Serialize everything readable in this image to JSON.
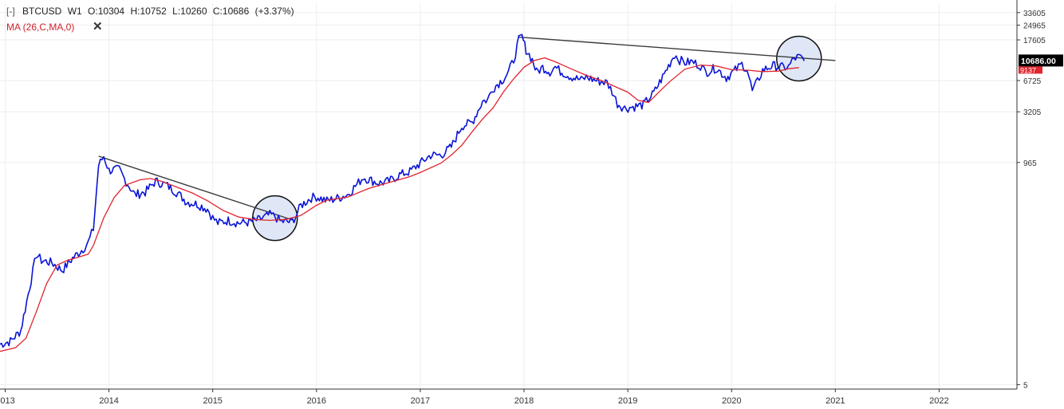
{
  "header": {
    "collapse_icon": "[-]",
    "symbol": "BTCUSD",
    "interval": "W1",
    "open": "O:10304",
    "high": "H:10752",
    "low": "L:10260",
    "close": "C:10686",
    "change": "(+3.37%)"
  },
  "indicator": {
    "label": "MA (26,C,MA,0)",
    "close_icon": "✕",
    "color": "#e0252f"
  },
  "colors": {
    "price": "#0a14d6",
    "ma": "#e0252f",
    "trendline": "#3c3c3c",
    "grid": "#eeeeee",
    "circle_fill": "#dfe7f7",
    "last_price_bg": "#000000",
    "ma_price_bg": "#e0252f"
  },
  "chart_data": {
    "type": "line",
    "scale": "log",
    "ylim": [
      4.5,
      42000
    ],
    "xlim": [
      2012.95,
      2022.75
    ],
    "y_ticks": [
      33605,
      24965,
      17605,
      6725,
      3205,
      965,
      5
    ],
    "y_tick_labels": [
      "33605",
      "24965",
      "17605",
      "6725",
      "3205",
      "965",
      "5"
    ],
    "x_ticks": [
      2013,
      2014,
      2015,
      2016,
      2017,
      2018,
      2019,
      2020,
      2021,
      2022
    ],
    "x_tick_labels": [
      "2013",
      "2014",
      "2015",
      "2016",
      "2017",
      "2018",
      "2019",
      "2020",
      "2021",
      "2022"
    ],
    "last_price_label": "10686.00",
    "ma_price_label": "9137",
    "series": [
      {
        "role": "price",
        "points": [
          [
            2012.95,
            13
          ],
          [
            2013.05,
            14
          ],
          [
            2013.15,
            18
          ],
          [
            2013.25,
            60
          ],
          [
            2013.3,
            110
          ],
          [
            2013.35,
            95
          ],
          [
            2013.45,
            90
          ],
          [
            2013.55,
            75
          ],
          [
            2013.65,
            100
          ],
          [
            2013.75,
            125
          ],
          [
            2013.8,
            145
          ],
          [
            2013.85,
            200
          ],
          [
            2013.9,
            900
          ],
          [
            2013.95,
            1120
          ],
          [
            2014.0,
            800
          ],
          [
            2014.1,
            820
          ],
          [
            2014.15,
            650
          ],
          [
            2014.25,
            450
          ],
          [
            2014.35,
            480
          ],
          [
            2014.45,
            620
          ],
          [
            2014.55,
            570
          ],
          [
            2014.65,
            480
          ],
          [
            2014.75,
            380
          ],
          [
            2014.85,
            360
          ],
          [
            2014.95,
            320
          ],
          [
            2015.0,
            260
          ],
          [
            2015.05,
            230
          ],
          [
            2015.15,
            245
          ],
          [
            2015.25,
            230
          ],
          [
            2015.35,
            235
          ],
          [
            2015.45,
            250
          ],
          [
            2015.55,
            280
          ],
          [
            2015.6,
            270
          ],
          [
            2015.65,
            240
          ],
          [
            2015.75,
            235
          ],
          [
            2015.8,
            270
          ],
          [
            2015.85,
            350
          ],
          [
            2015.95,
            420
          ],
          [
            2016.0,
            430
          ],
          [
            2016.1,
            390
          ],
          [
            2016.2,
            415
          ],
          [
            2016.3,
            450
          ],
          [
            2016.45,
            680
          ],
          [
            2016.5,
            650
          ],
          [
            2016.6,
            590
          ],
          [
            2016.7,
            620
          ],
          [
            2016.8,
            720
          ],
          [
            2016.9,
            780
          ],
          [
            2017.0,
            950
          ],
          [
            2017.1,
            1150
          ],
          [
            2017.2,
            1150
          ],
          [
            2017.3,
            1400
          ],
          [
            2017.4,
            2300
          ],
          [
            2017.5,
            2500
          ],
          [
            2017.6,
            4100
          ],
          [
            2017.65,
            4300
          ],
          [
            2017.7,
            5600
          ],
          [
            2017.8,
            7000
          ],
          [
            2017.85,
            8200
          ],
          [
            2017.9,
            11000
          ],
          [
            2017.95,
            17600
          ],
          [
            2017.98,
            19000
          ],
          [
            2018.02,
            14000
          ],
          [
            2018.08,
            11000
          ],
          [
            2018.12,
            8200
          ],
          [
            2018.18,
            9200
          ],
          [
            2018.25,
            8300
          ],
          [
            2018.3,
            9300
          ],
          [
            2018.35,
            8400
          ],
          [
            2018.45,
            7400
          ],
          [
            2018.55,
            6800
          ],
          [
            2018.6,
            7300
          ],
          [
            2018.7,
            6700
          ],
          [
            2018.8,
            6400
          ],
          [
            2018.85,
            5200
          ],
          [
            2018.9,
            3900
          ],
          [
            2018.97,
            3500
          ],
          [
            2019.05,
            3600
          ],
          [
            2019.15,
            3800
          ],
          [
            2019.25,
            5000
          ],
          [
            2019.35,
            7800
          ],
          [
            2019.45,
            12500
          ],
          [
            2019.5,
            11000
          ],
          [
            2019.55,
            10300
          ],
          [
            2019.62,
            10500
          ],
          [
            2019.7,
            9600
          ],
          [
            2019.75,
            8200
          ],
          [
            2019.85,
            9100
          ],
          [
            2019.95,
            7200
          ],
          [
            2020.05,
            8900
          ],
          [
            2020.1,
            9900
          ],
          [
            2020.15,
            8800
          ],
          [
            2020.2,
            5200
          ],
          [
            2020.25,
            6600
          ],
          [
            2020.3,
            8600
          ],
          [
            2020.4,
            9600
          ],
          [
            2020.5,
            9200
          ],
          [
            2020.55,
            9300
          ],
          [
            2020.6,
            11300
          ],
          [
            2020.65,
            11800
          ],
          [
            2020.7,
            10700
          ]
        ]
      },
      {
        "role": "moving_average",
        "points": [
          [
            2012.95,
            11
          ],
          [
            2013.1,
            12
          ],
          [
            2013.2,
            15
          ],
          [
            2013.3,
            28
          ],
          [
            2013.4,
            55
          ],
          [
            2013.5,
            85
          ],
          [
            2013.6,
            95
          ],
          [
            2013.7,
            102
          ],
          [
            2013.8,
            110
          ],
          [
            2013.85,
            135
          ],
          [
            2013.95,
            260
          ],
          [
            2014.05,
            420
          ],
          [
            2014.15,
            560
          ],
          [
            2014.3,
            640
          ],
          [
            2014.4,
            660
          ],
          [
            2014.5,
            620
          ],
          [
            2014.65,
            540
          ],
          [
            2014.8,
            470
          ],
          [
            2014.95,
            390
          ],
          [
            2015.1,
            310
          ],
          [
            2015.25,
            265
          ],
          [
            2015.4,
            250
          ],
          [
            2015.55,
            245
          ],
          [
            2015.7,
            250
          ],
          [
            2015.85,
            275
          ],
          [
            2016.0,
            350
          ],
          [
            2016.1,
            395
          ],
          [
            2016.3,
            425
          ],
          [
            2016.5,
            520
          ],
          [
            2016.7,
            600
          ],
          [
            2016.9,
            690
          ],
          [
            2017.0,
            760
          ],
          [
            2017.2,
            950
          ],
          [
            2017.3,
            1150
          ],
          [
            2017.4,
            1450
          ],
          [
            2017.5,
            2000
          ],
          [
            2017.6,
            2700
          ],
          [
            2017.7,
            3500
          ],
          [
            2017.8,
            5100
          ],
          [
            2017.9,
            7000
          ],
          [
            2018.0,
            9200
          ],
          [
            2018.1,
            10800
          ],
          [
            2018.2,
            11500
          ],
          [
            2018.3,
            10500
          ],
          [
            2018.45,
            8900
          ],
          [
            2018.6,
            7600
          ],
          [
            2018.75,
            6700
          ],
          [
            2018.85,
            6000
          ],
          [
            2019.0,
            5100
          ],
          [
            2019.1,
            4200
          ],
          [
            2019.2,
            4000
          ],
          [
            2019.3,
            5100
          ],
          [
            2019.4,
            6500
          ],
          [
            2019.55,
            8800
          ],
          [
            2019.7,
            9700
          ],
          [
            2019.85,
            9500
          ],
          [
            2020.0,
            8700
          ],
          [
            2020.15,
            8600
          ],
          [
            2020.3,
            8300
          ],
          [
            2020.45,
            8400
          ],
          [
            2020.55,
            8900
          ],
          [
            2020.65,
            9137
          ]
        ]
      }
    ],
    "trendlines": [
      [
        [
          2013.9,
          1120
        ],
        [
          2015.78,
          245
        ]
      ],
      [
        [
          2017.95,
          18800
        ],
        [
          2021.0,
          10800
        ]
      ]
    ],
    "highlight_circles": [
      {
        "x": 2015.6,
        "y": 258
      },
      {
        "x": 2020.65,
        "y": 11300
      }
    ]
  }
}
